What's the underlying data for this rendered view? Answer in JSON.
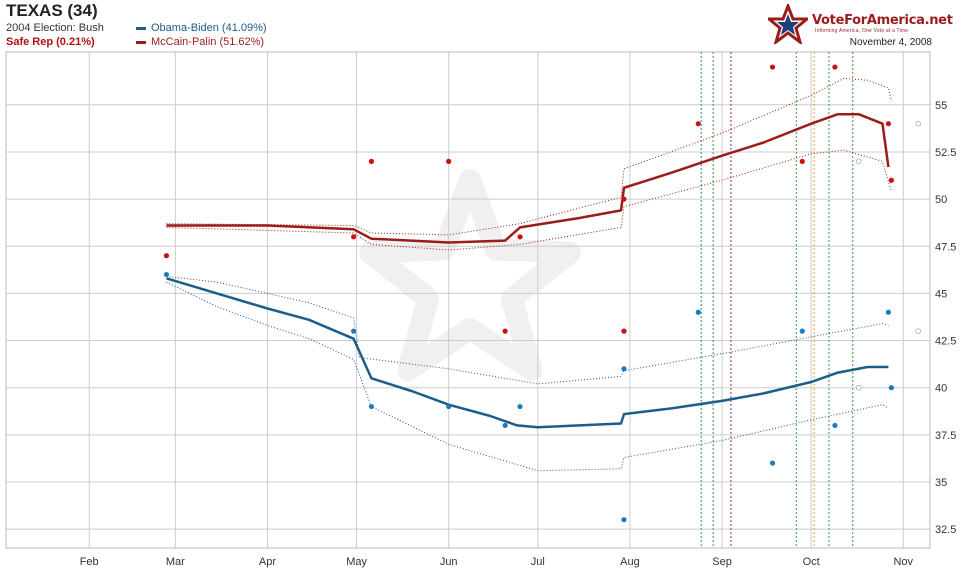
{
  "header": {
    "title": "TEXAS (34)",
    "prior_election": "2004 Election: Bush",
    "status": "Safe Rep (0.21%)",
    "brand": "VoteForAmerica.net",
    "tagline": "Informing America, One Vote at a Time",
    "date": "November 4, 2008"
  },
  "colors": {
    "obama": "#1d5d8a",
    "mccain": "#9c1c1c",
    "obama_point": "#1a7bbf",
    "mccain_point": "#cc1111",
    "grid": "#cccccc",
    "vline_green": "#3a9a3a",
    "vline_orange": "#e8a030",
    "vline_red": "#b02050",
    "vline_teal": "#2a8a7a"
  },
  "chart_data": {
    "type": "line",
    "title": "TEXAS (34)",
    "x_tick_labels": [
      "Feb",
      "Mar",
      "Apr",
      "May",
      "Jun",
      "Jul",
      "Aug",
      "Sep",
      "Oct",
      "Nov"
    ],
    "x_tick_dates": [
      "2008-02-01",
      "2008-03-01",
      "2008-04-01",
      "2008-05-01",
      "2008-06-01",
      "2008-07-01",
      "2008-08-01",
      "2008-09-01",
      "2008-10-01",
      "2008-11-01"
    ],
    "x_range": [
      "2008-01-04",
      "2008-11-10"
    ],
    "y_ticks": [
      "32.5",
      "35",
      "37.5",
      "40",
      "42.5",
      "45",
      "47.5",
      "50",
      "52.5",
      "55"
    ],
    "y_range": [
      31.5,
      57.8
    ],
    "grid": true,
    "legend_position": "top-left",
    "series": [
      {
        "name": "Obama-Biden (41.09%)",
        "key": "obama",
        "trend": [
          [
            "2008-02-27",
            45.8
          ],
          [
            "2008-03-15",
            45.0
          ],
          [
            "2008-04-01",
            44.2
          ],
          [
            "2008-04-15",
            43.6
          ],
          [
            "2008-04-30",
            42.6
          ],
          [
            "2008-05-06",
            40.5
          ],
          [
            "2008-05-20",
            39.8
          ],
          [
            "2008-06-01",
            39.1
          ],
          [
            "2008-06-15",
            38.5
          ],
          [
            "2008-06-24",
            38.0
          ],
          [
            "2008-07-01",
            37.9
          ],
          [
            "2008-07-15",
            38.0
          ],
          [
            "2008-07-29",
            38.1
          ],
          [
            "2008-07-30",
            38.6
          ],
          [
            "2008-08-15",
            38.9
          ],
          [
            "2008-09-01",
            39.3
          ],
          [
            "2008-09-15",
            39.7
          ],
          [
            "2008-10-01",
            40.3
          ],
          [
            "2008-10-10",
            40.8
          ],
          [
            "2008-10-20",
            41.1
          ],
          [
            "2008-10-27",
            41.1
          ]
        ],
        "upper": [
          [
            "2008-02-27",
            45.9
          ],
          [
            "2008-03-15",
            45.6
          ],
          [
            "2008-04-01",
            45.0
          ],
          [
            "2008-04-15",
            44.5
          ],
          [
            "2008-04-30",
            43.7
          ],
          [
            "2008-05-02",
            41.6
          ],
          [
            "2008-06-01",
            41.0
          ],
          [
            "2008-07-01",
            40.2
          ],
          [
            "2008-07-29",
            40.6
          ],
          [
            "2008-07-30",
            40.9
          ],
          [
            "2008-09-01",
            41.8
          ],
          [
            "2008-10-01",
            42.7
          ],
          [
            "2008-10-25",
            43.4
          ],
          [
            "2008-10-27",
            43.3
          ]
        ],
        "lower": [
          [
            "2008-02-27",
            45.6
          ],
          [
            "2008-03-15",
            44.3
          ],
          [
            "2008-04-01",
            43.3
          ],
          [
            "2008-04-15",
            42.6
          ],
          [
            "2008-04-30",
            41.5
          ],
          [
            "2008-05-06",
            39.0
          ],
          [
            "2008-06-01",
            37.0
          ],
          [
            "2008-07-01",
            35.6
          ],
          [
            "2008-07-29",
            35.7
          ],
          [
            "2008-07-30",
            36.3
          ],
          [
            "2008-09-01",
            37.2
          ],
          [
            "2008-10-01",
            38.3
          ],
          [
            "2008-10-25",
            39.1
          ],
          [
            "2008-10-27",
            38.9
          ]
        ],
        "polls": [
          [
            "2008-02-27",
            46.0
          ],
          [
            "2008-04-30",
            43.0
          ],
          [
            "2008-05-06",
            39.0
          ],
          [
            "2008-06-01",
            39.0
          ],
          [
            "2008-06-20",
            38.0
          ],
          [
            "2008-06-25",
            39.0
          ],
          [
            "2008-07-30",
            41.0
          ],
          [
            "2008-07-30",
            33.0
          ],
          [
            "2008-08-24",
            44.0
          ],
          [
            "2008-09-18",
            36.0
          ],
          [
            "2008-09-28",
            43.0
          ],
          [
            "2008-10-09",
            38.0
          ],
          [
            "2008-10-27",
            44.0
          ],
          [
            "2008-10-28",
            40.0
          ]
        ],
        "hollow": [
          [
            "2008-10-17",
            40.0
          ],
          [
            "2008-11-06",
            43.0
          ]
        ]
      },
      {
        "name": "McCain-Palin (51.62%)",
        "key": "mccain",
        "trend": [
          [
            "2008-02-27",
            48.6
          ],
          [
            "2008-04-01",
            48.6
          ],
          [
            "2008-04-30",
            48.4
          ],
          [
            "2008-05-06",
            47.9
          ],
          [
            "2008-06-01",
            47.7
          ],
          [
            "2008-06-20",
            47.8
          ],
          [
            "2008-06-25",
            48.5
          ],
          [
            "2008-07-15",
            49.0
          ],
          [
            "2008-07-29",
            49.4
          ],
          [
            "2008-07-30",
            50.6
          ],
          [
            "2008-08-15",
            51.4
          ],
          [
            "2008-09-01",
            52.3
          ],
          [
            "2008-09-15",
            53.0
          ],
          [
            "2008-10-01",
            54.0
          ],
          [
            "2008-10-10",
            54.5
          ],
          [
            "2008-10-17",
            54.5
          ],
          [
            "2008-10-25",
            54.0
          ],
          [
            "2008-10-27",
            51.7
          ]
        ],
        "upper": [
          [
            "2008-02-27",
            48.7
          ],
          [
            "2008-04-30",
            48.6
          ],
          [
            "2008-05-06",
            48.2
          ],
          [
            "2008-06-01",
            48.1
          ],
          [
            "2008-06-25",
            48.7
          ],
          [
            "2008-07-29",
            50.1
          ],
          [
            "2008-07-30",
            51.6
          ],
          [
            "2008-09-01",
            53.5
          ],
          [
            "2008-10-01",
            55.5
          ],
          [
            "2008-10-12",
            56.4
          ],
          [
            "2008-10-20",
            56.3
          ],
          [
            "2008-10-27",
            55.9
          ],
          [
            "2008-10-28",
            55.2
          ]
        ],
        "lower": [
          [
            "2008-02-27",
            48.5
          ],
          [
            "2008-04-30",
            48.2
          ],
          [
            "2008-05-06",
            47.6
          ],
          [
            "2008-06-01",
            47.3
          ],
          [
            "2008-06-25",
            47.6
          ],
          [
            "2008-07-29",
            48.5
          ],
          [
            "2008-07-30",
            49.6
          ],
          [
            "2008-09-01",
            51.0
          ],
          [
            "2008-10-01",
            52.4
          ],
          [
            "2008-10-12",
            52.6
          ],
          [
            "2008-10-25",
            52.0
          ],
          [
            "2008-10-28",
            50.4
          ]
        ],
        "polls": [
          [
            "2008-02-27",
            47.0
          ],
          [
            "2008-04-30",
            48.0
          ],
          [
            "2008-05-06",
            52.0
          ],
          [
            "2008-06-01",
            52.0
          ],
          [
            "2008-06-20",
            43.0
          ],
          [
            "2008-06-25",
            48.0
          ],
          [
            "2008-07-30",
            50.0
          ],
          [
            "2008-07-30",
            43.0
          ],
          [
            "2008-08-24",
            54.0
          ],
          [
            "2008-09-18",
            57.0
          ],
          [
            "2008-09-28",
            52.0
          ],
          [
            "2008-10-09",
            57.0
          ],
          [
            "2008-10-27",
            54.0
          ],
          [
            "2008-10-28",
            51.0
          ]
        ],
        "hollow": [
          [
            "2008-10-17",
            52.0
          ],
          [
            "2008-11-06",
            54.0
          ]
        ]
      }
    ],
    "vertical_lines": [
      {
        "date": "2008-08-25",
        "color": "vline_teal"
      },
      {
        "date": "2008-08-29",
        "color": "vline_green"
      },
      {
        "date": "2008-09-04",
        "color": "vline_red"
      },
      {
        "date": "2008-09-26",
        "color": "vline_green"
      },
      {
        "date": "2008-10-02",
        "color": "vline_orange"
      },
      {
        "date": "2008-10-07",
        "color": "vline_green"
      },
      {
        "date": "2008-10-15",
        "color": "vline_green"
      }
    ]
  }
}
